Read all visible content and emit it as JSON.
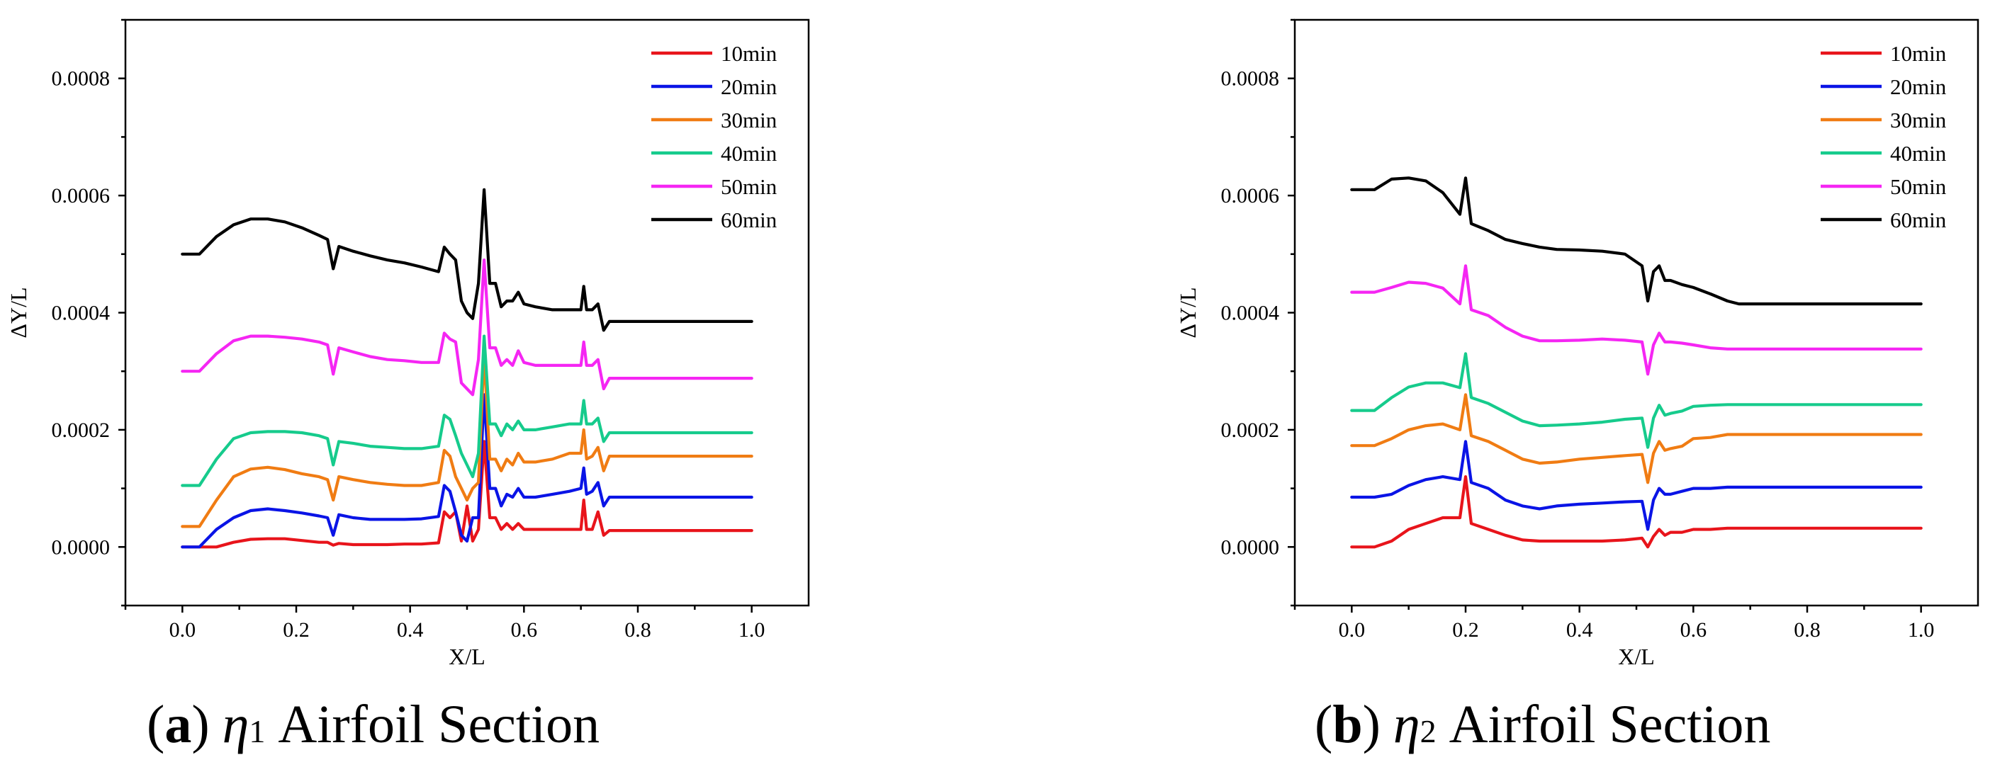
{
  "chart_data": [
    {
      "type": "line",
      "caption": {
        "open": "(",
        "letter": "a",
        "close": ")",
        "symbol": "η",
        "subscript": "1",
        "title": "Airfoil Section"
      },
      "xlabel": "X/L",
      "ylabel": "ΔY/L",
      "xlim": [
        -0.1,
        1.1
      ],
      "ylim": [
        -0.0001,
        0.0009
      ],
      "xticks": [
        "0.0",
        "0.2",
        "0.4",
        "0.6",
        "0.8",
        "1.0"
      ],
      "yticks": [
        "0.0000",
        "0.0002",
        "0.0004",
        "0.0006",
        "0.0008"
      ],
      "legend_position": "top-right",
      "x": [
        0,
        0.03,
        0.06,
        0.09,
        0.12,
        0.15,
        0.18,
        0.21,
        0.24,
        0.255,
        0.265,
        0.275,
        0.3,
        0.33,
        0.36,
        0.39,
        0.42,
        0.45,
        0.46,
        0.47,
        0.48,
        0.49,
        0.5,
        0.51,
        0.52,
        0.53,
        0.54,
        0.55,
        0.56,
        0.57,
        0.58,
        0.59,
        0.6,
        0.62,
        0.65,
        0.68,
        0.7,
        0.705,
        0.71,
        0.72,
        0.73,
        0.74,
        0.75,
        0.8,
        0.9,
        1.0
      ],
      "series": [
        {
          "name": "10min",
          "color": "#e8141b",
          "values": [
            0,
            0,
            0,
            8e-06,
            1.3e-05,
            1.4e-05,
            1.4e-05,
            1.1e-05,
            8e-06,
            8e-06,
            3e-06,
            6e-06,
            4e-06,
            4e-06,
            4e-06,
            5e-06,
            5e-06,
            7e-06,
            6e-05,
            5e-05,
            6e-05,
            1e-05,
            7e-05,
            1e-05,
            3e-05,
            0.00018,
            5e-05,
            5e-05,
            3e-05,
            4e-05,
            3e-05,
            4e-05,
            3e-05,
            3e-05,
            3e-05,
            3e-05,
            3e-05,
            8e-05,
            3e-05,
            3e-05,
            6e-05,
            2e-05,
            2.8e-05,
            2.8e-05,
            2.8e-05,
            2.8e-05
          ]
        },
        {
          "name": "20min",
          "color": "#0a14e6",
          "values": [
            0,
            0,
            3e-05,
            5e-05,
            6.2e-05,
            6.5e-05,
            6.2e-05,
            5.8e-05,
            5.3e-05,
            5e-05,
            2e-05,
            5.5e-05,
            5e-05,
            4.7e-05,
            4.7e-05,
            4.7e-05,
            4.8e-05,
            5.2e-05,
            0.000105,
            9.5e-05,
            6e-05,
            2e-05,
            1e-05,
            5e-05,
            5e-05,
            0.00026,
            0.0001,
            0.0001,
            7e-05,
            9e-05,
            8.5e-05,
            0.0001,
            8.5e-05,
            8.5e-05,
            9e-05,
            9.5e-05,
            0.0001,
            0.000135,
            9e-05,
            9.5e-05,
            0.00011,
            7e-05,
            8.5e-05,
            8.5e-05,
            8.5e-05,
            8.5e-05
          ]
        },
        {
          "name": "30min",
          "color": "#f07c13",
          "values": [
            3.5e-05,
            3.5e-05,
            8e-05,
            0.00012,
            0.000133,
            0.000136,
            0.000132,
            0.000125,
            0.00012,
            0.000115,
            8e-05,
            0.00012,
            0.000115,
            0.00011,
            0.000107,
            0.000105,
            0.000105,
            0.00011,
            0.000165,
            0.000155,
            0.00012,
            0.0001,
            8e-05,
            0.0001,
            0.00011,
            0.00033,
            0.00015,
            0.00015,
            0.00013,
            0.00015,
            0.00014,
            0.00016,
            0.000145,
            0.000145,
            0.00015,
            0.00016,
            0.00016,
            0.0002,
            0.00015,
            0.000155,
            0.00017,
            0.00013,
            0.000155,
            0.000155,
            0.000155,
            0.000155
          ]
        },
        {
          "name": "40min",
          "color": "#16cb8c",
          "values": [
            0.000105,
            0.000105,
            0.00015,
            0.000185,
            0.000195,
            0.000197,
            0.000197,
            0.000195,
            0.00019,
            0.000185,
            0.00014,
            0.00018,
            0.000177,
            0.000172,
            0.00017,
            0.000168,
            0.000168,
            0.000172,
            0.000225,
            0.000218,
            0.00019,
            0.00016,
            0.00014,
            0.00012,
            0.00016,
            0.00036,
            0.00021,
            0.00021,
            0.00019,
            0.00021,
            0.0002,
            0.000215,
            0.0002,
            0.0002,
            0.000205,
            0.00021,
            0.00021,
            0.00025,
            0.00021,
            0.00021,
            0.00022,
            0.00018,
            0.000195,
            0.000195,
            0.000195,
            0.000195
          ]
        },
        {
          "name": "50min",
          "color": "#f526f3",
          "values": [
            0.0003,
            0.0003,
            0.00033,
            0.000352,
            0.00036,
            0.00036,
            0.000358,
            0.000355,
            0.00035,
            0.000345,
            0.000295,
            0.00034,
            0.000333,
            0.000325,
            0.00032,
            0.000318,
            0.000315,
            0.000315,
            0.000365,
            0.000355,
            0.00035,
            0.00028,
            0.00027,
            0.00026,
            0.00032,
            0.00049,
            0.00034,
            0.00034,
            0.00031,
            0.00032,
            0.00031,
            0.000335,
            0.000315,
            0.00031,
            0.00031,
            0.00031,
            0.00031,
            0.00035,
            0.00031,
            0.00031,
            0.00032,
            0.00027,
            0.000288,
            0.000288,
            0.000288,
            0.000288
          ]
        },
        {
          "name": "60min",
          "color": "#000000",
          "values": [
            0.0005,
            0.0005,
            0.00053,
            0.00055,
            0.00056,
            0.00056,
            0.000555,
            0.000545,
            0.000532,
            0.000525,
            0.000475,
            0.000513,
            0.000505,
            0.000497,
            0.00049,
            0.000485,
            0.000478,
            0.00047,
            0.000512,
            0.0005,
            0.00049,
            0.00042,
            0.0004,
            0.00039,
            0.00045,
            0.00061,
            0.00045,
            0.00045,
            0.00041,
            0.00042,
            0.00042,
            0.000435,
            0.000415,
            0.00041,
            0.000405,
            0.000405,
            0.000405,
            0.000445,
            0.000405,
            0.000405,
            0.000415,
            0.00037,
            0.000385,
            0.000385,
            0.000385,
            0.000385
          ]
        }
      ]
    },
    {
      "type": "line",
      "caption": {
        "open": "(",
        "letter": "b",
        "close": ")",
        "symbol": "η",
        "subscript": "2",
        "title": "Airfoil Section"
      },
      "xlabel": "X/L",
      "ylabel": "ΔY/L",
      "xlim": [
        -0.1,
        1.1
      ],
      "ylim": [
        -0.0001,
        0.0009
      ],
      "xticks": [
        "0.0",
        "0.2",
        "0.4",
        "0.6",
        "0.8",
        "1.0"
      ],
      "yticks": [
        "0.0000",
        "0.0002",
        "0.0004",
        "0.0006",
        "0.0008"
      ],
      "legend_position": "top-right",
      "x": [
        0,
        0.04,
        0.07,
        0.1,
        0.13,
        0.16,
        0.19,
        0.2,
        0.21,
        0.24,
        0.27,
        0.3,
        0.33,
        0.36,
        0.4,
        0.44,
        0.48,
        0.51,
        0.52,
        0.53,
        0.54,
        0.55,
        0.56,
        0.58,
        0.6,
        0.63,
        0.66,
        0.68,
        0.7,
        0.8,
        0.9,
        1.0
      ],
      "series": [
        {
          "name": "10min",
          "color": "#e8141b",
          "values": [
            0,
            0,
            1e-05,
            3e-05,
            4e-05,
            5e-05,
            5e-05,
            0.00012,
            4e-05,
            3e-05,
            2e-05,
            1.2e-05,
            1e-05,
            1e-05,
            1e-05,
            1e-05,
            1.2e-05,
            1.5e-05,
            0,
            1.8e-05,
            3e-05,
            2e-05,
            2.5e-05,
            2.5e-05,
            3e-05,
            3e-05,
            3.2e-05,
            3.2e-05,
            3.2e-05,
            3.2e-05,
            3.2e-05,
            3.2e-05
          ]
        },
        {
          "name": "20min",
          "color": "#0a14e6",
          "values": [
            8.5e-05,
            8.5e-05,
            9e-05,
            0.000105,
            0.000115,
            0.00012,
            0.000115,
            0.00018,
            0.00011,
            0.0001,
            8e-05,
            7e-05,
            6.5e-05,
            7e-05,
            7.3e-05,
            7.5e-05,
            7.7e-05,
            7.8e-05,
            3e-05,
            8e-05,
            0.0001,
            9e-05,
            9e-05,
            9.5e-05,
            0.0001,
            0.0001,
            0.000102,
            0.000102,
            0.000102,
            0.000102,
            0.000102,
            0.000102
          ]
        },
        {
          "name": "30min",
          "color": "#f07c13",
          "values": [
            0.000173,
            0.000173,
            0.000185,
            0.0002,
            0.000207,
            0.00021,
            0.0002,
            0.00026,
            0.00019,
            0.00018,
            0.000165,
            0.00015,
            0.000143,
            0.000145,
            0.00015,
            0.000153,
            0.000156,
            0.000158,
            0.00011,
            0.00016,
            0.00018,
            0.000165,
            0.000168,
            0.000172,
            0.000185,
            0.000187,
            0.000192,
            0.000192,
            0.000192,
            0.000192,
            0.000192,
            0.000192
          ]
        },
        {
          "name": "40min",
          "color": "#16cb8c",
          "values": [
            0.000233,
            0.000233,
            0.000255,
            0.000273,
            0.00028,
            0.00028,
            0.000272,
            0.00033,
            0.000255,
            0.000245,
            0.00023,
            0.000215,
            0.000207,
            0.000208,
            0.00021,
            0.000213,
            0.000218,
            0.00022,
            0.00017,
            0.00022,
            0.000242,
            0.000225,
            0.000228,
            0.000232,
            0.00024,
            0.000242,
            0.000243,
            0.000243,
            0.000243,
            0.000243,
            0.000243,
            0.000243
          ]
        },
        {
          "name": "50min",
          "color": "#f526f3",
          "values": [
            0.000435,
            0.000435,
            0.000443,
            0.000452,
            0.00045,
            0.000442,
            0.000415,
            0.00048,
            0.000405,
            0.000395,
            0.000375,
            0.00036,
            0.000352,
            0.000352,
            0.000353,
            0.000355,
            0.000353,
            0.00035,
            0.000295,
            0.000345,
            0.000365,
            0.00035,
            0.00035,
            0.000348,
            0.000345,
            0.00034,
            0.000338,
            0.000338,
            0.000338,
            0.000338,
            0.000338,
            0.000338
          ]
        },
        {
          "name": "60min",
          "color": "#000000",
          "values": [
            0.00061,
            0.00061,
            0.000628,
            0.00063,
            0.000625,
            0.000605,
            0.000568,
            0.00063,
            0.000552,
            0.00054,
            0.000525,
            0.000518,
            0.000512,
            0.000508,
            0.000507,
            0.000505,
            0.0005,
            0.00048,
            0.00042,
            0.00047,
            0.00048,
            0.000455,
            0.000455,
            0.000448,
            0.000443,
            0.000432,
            0.00042,
            0.000415,
            0.000415,
            0.000415,
            0.000415,
            0.000415
          ]
        }
      ]
    }
  ]
}
